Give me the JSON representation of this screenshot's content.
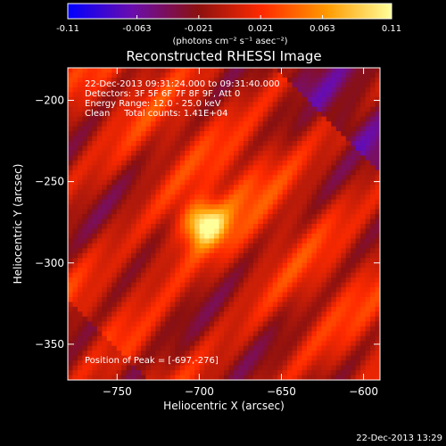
{
  "colorbar": {
    "ticks": [
      "-0.11",
      "-0.063",
      "-0.021",
      "0.021",
      "0.063",
      "0.11"
    ],
    "vmin": -0.11,
    "vmax": 0.11,
    "units": "(photons cm⁻² s⁻¹ asec⁻²)",
    "colormap": [
      "#0000ff",
      "#6a0dad",
      "#8a1010",
      "#ff2a00",
      "#ff9a00",
      "#ffff9a"
    ]
  },
  "chart_data": {
    "type": "heatmap",
    "title": "Reconstructed RHESSI Image",
    "xlabel": "Heliocentric X (arcsec)",
    "ylabel": "Heliocentric Y (arcsec)",
    "xlim": [
      -780,
      -590
    ],
    "ylim": [
      -372,
      -180
    ],
    "xticks": [
      -750,
      -700,
      -650,
      -600
    ],
    "yticks": [
      -200,
      -250,
      -300,
      -350
    ],
    "peak": {
      "x": -697,
      "y": -276,
      "value": 0.11
    },
    "annotations": [
      "22-Dec-2013 09:31:24.000 to 09:31:40.000",
      "Detectors: 3F 5F 6F 7F 8F 9F, Att 0",
      "Energy Range: 12.0 - 25.0 keV",
      "Clean     Total counts: 1.41E+04"
    ],
    "peak_label": "Position of Peak = [-697,-276]",
    "grid": false,
    "colorbar_position": "top"
  },
  "footer": {
    "timestamp": "22-Dec-2013 13:29"
  }
}
